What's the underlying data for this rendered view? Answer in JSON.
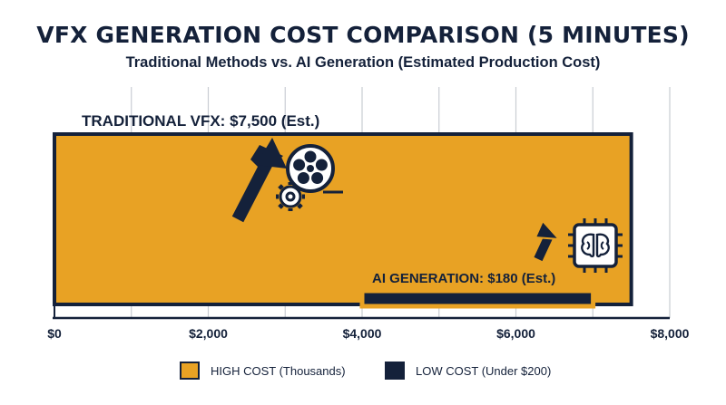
{
  "chart_data": {
    "type": "bar",
    "orientation": "horizontal",
    "title": "VFX GENERATION COST COMPARISON (5 MINUTES)",
    "subtitle": "Traditional Methods vs. AI Generation (Estimated Production Cost)",
    "xlim": [
      0,
      8000
    ],
    "x_ticks": [
      0,
      2000,
      4000,
      6000,
      8000
    ],
    "x_tick_labels": [
      "$0",
      "$2,000",
      "$4,000",
      "$6,000",
      "$8,000"
    ],
    "grid": true,
    "legend_position": "bottom",
    "series": [
      {
        "label": "TRADITIONAL VFX: $7,500 (Est.)",
        "value": 7500,
        "color": "#e8a224",
        "border": "#14213a",
        "icon": "film-reel-gear-icon"
      },
      {
        "label": "AI GENERATION: $180 (Est.)",
        "value": 180,
        "color": "#14213a",
        "border": "#e8a224",
        "icon": "ai-brain-chip-icon"
      }
    ],
    "legend": [
      {
        "label": "HIGH COST (Thousands)",
        "color": "#e8a224"
      },
      {
        "label": "LOW COST (Under $200)",
        "color": "#14213a"
      }
    ]
  }
}
